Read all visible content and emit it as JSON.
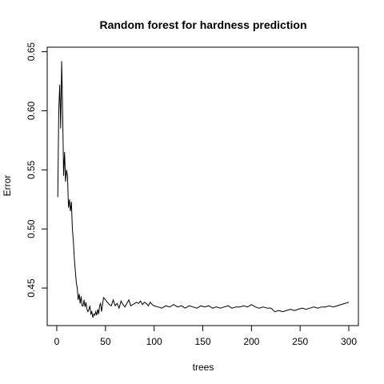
{
  "chart_data": {
    "type": "line",
    "title": "Random forest for hardness prediction",
    "xlabel": "trees",
    "ylabel": "Error",
    "xlim": [
      0,
      300
    ],
    "ylim": [
      0.425,
      0.645
    ],
    "xticks": [
      0,
      50,
      100,
      150,
      200,
      250,
      300
    ],
    "yticks": [
      0.45,
      0.5,
      0.55,
      0.6,
      0.65
    ],
    "ytick_labels": [
      "0.45",
      "0.50",
      "0.55",
      "0.60",
      "0.65"
    ],
    "grid": false,
    "line_color": "#000000",
    "series": [
      {
        "x": [
          1,
          2,
          3,
          4,
          5,
          6,
          7,
          8,
          9,
          10,
          11,
          12,
          13,
          14,
          15,
          16,
          17,
          18,
          19,
          20,
          21,
          22,
          23,
          24,
          25,
          26,
          27,
          28,
          29,
          30,
          31,
          32,
          33,
          34,
          35,
          36,
          37,
          38,
          39,
          40,
          41,
          42,
          43,
          44,
          45,
          46,
          48,
          50,
          52,
          54,
          56,
          58,
          60,
          62,
          64,
          66,
          68,
          70,
          72,
          74,
          76,
          78,
          80,
          82,
          84,
          86,
          88,
          90,
          92,
          94,
          96,
          98,
          100,
          104,
          108,
          112,
          116,
          120,
          124,
          128,
          132,
          136,
          140,
          144,
          148,
          152,
          156,
          160,
          164,
          168,
          172,
          176,
          180,
          184,
          188,
          192,
          196,
          200,
          204,
          208,
          212,
          216,
          220,
          224,
          228,
          232,
          236,
          240,
          244,
          248,
          252,
          256,
          260,
          264,
          268,
          272,
          276,
          280,
          284,
          288,
          292,
          296,
          300
        ],
        "values": [
          0.527,
          0.6,
          0.622,
          0.585,
          0.642,
          0.6,
          0.545,
          0.565,
          0.54,
          0.55,
          0.545,
          0.518,
          0.525,
          0.515,
          0.523,
          0.5,
          0.49,
          0.475,
          0.465,
          0.455,
          0.45,
          0.44,
          0.445,
          0.437,
          0.443,
          0.435,
          0.435,
          0.44,
          0.434,
          0.438,
          0.432,
          0.43,
          0.432,
          0.435,
          0.428,
          0.43,
          0.425,
          0.428,
          0.427,
          0.43,
          0.427,
          0.432,
          0.428,
          0.435,
          0.437,
          0.43,
          0.442,
          0.44,
          0.438,
          0.436,
          0.435,
          0.44,
          0.435,
          0.437,
          0.433,
          0.439,
          0.436,
          0.434,
          0.437,
          0.44,
          0.435,
          0.436,
          0.437,
          0.438,
          0.437,
          0.439,
          0.436,
          0.438,
          0.437,
          0.435,
          0.438,
          0.436,
          0.435,
          0.434,
          0.433,
          0.435,
          0.434,
          0.436,
          0.434,
          0.435,
          0.433,
          0.435,
          0.434,
          0.433,
          0.435,
          0.434,
          0.435,
          0.433,
          0.434,
          0.433,
          0.434,
          0.435,
          0.433,
          0.434,
          0.434,
          0.435,
          0.434,
          0.436,
          0.434,
          0.433,
          0.434,
          0.433,
          0.433,
          0.43,
          0.431,
          0.43,
          0.431,
          0.432,
          0.431,
          0.432,
          0.433,
          0.432,
          0.433,
          0.434,
          0.433,
          0.434,
          0.434,
          0.435,
          0.434,
          0.435,
          0.436,
          0.437,
          0.438
        ]
      }
    ]
  }
}
